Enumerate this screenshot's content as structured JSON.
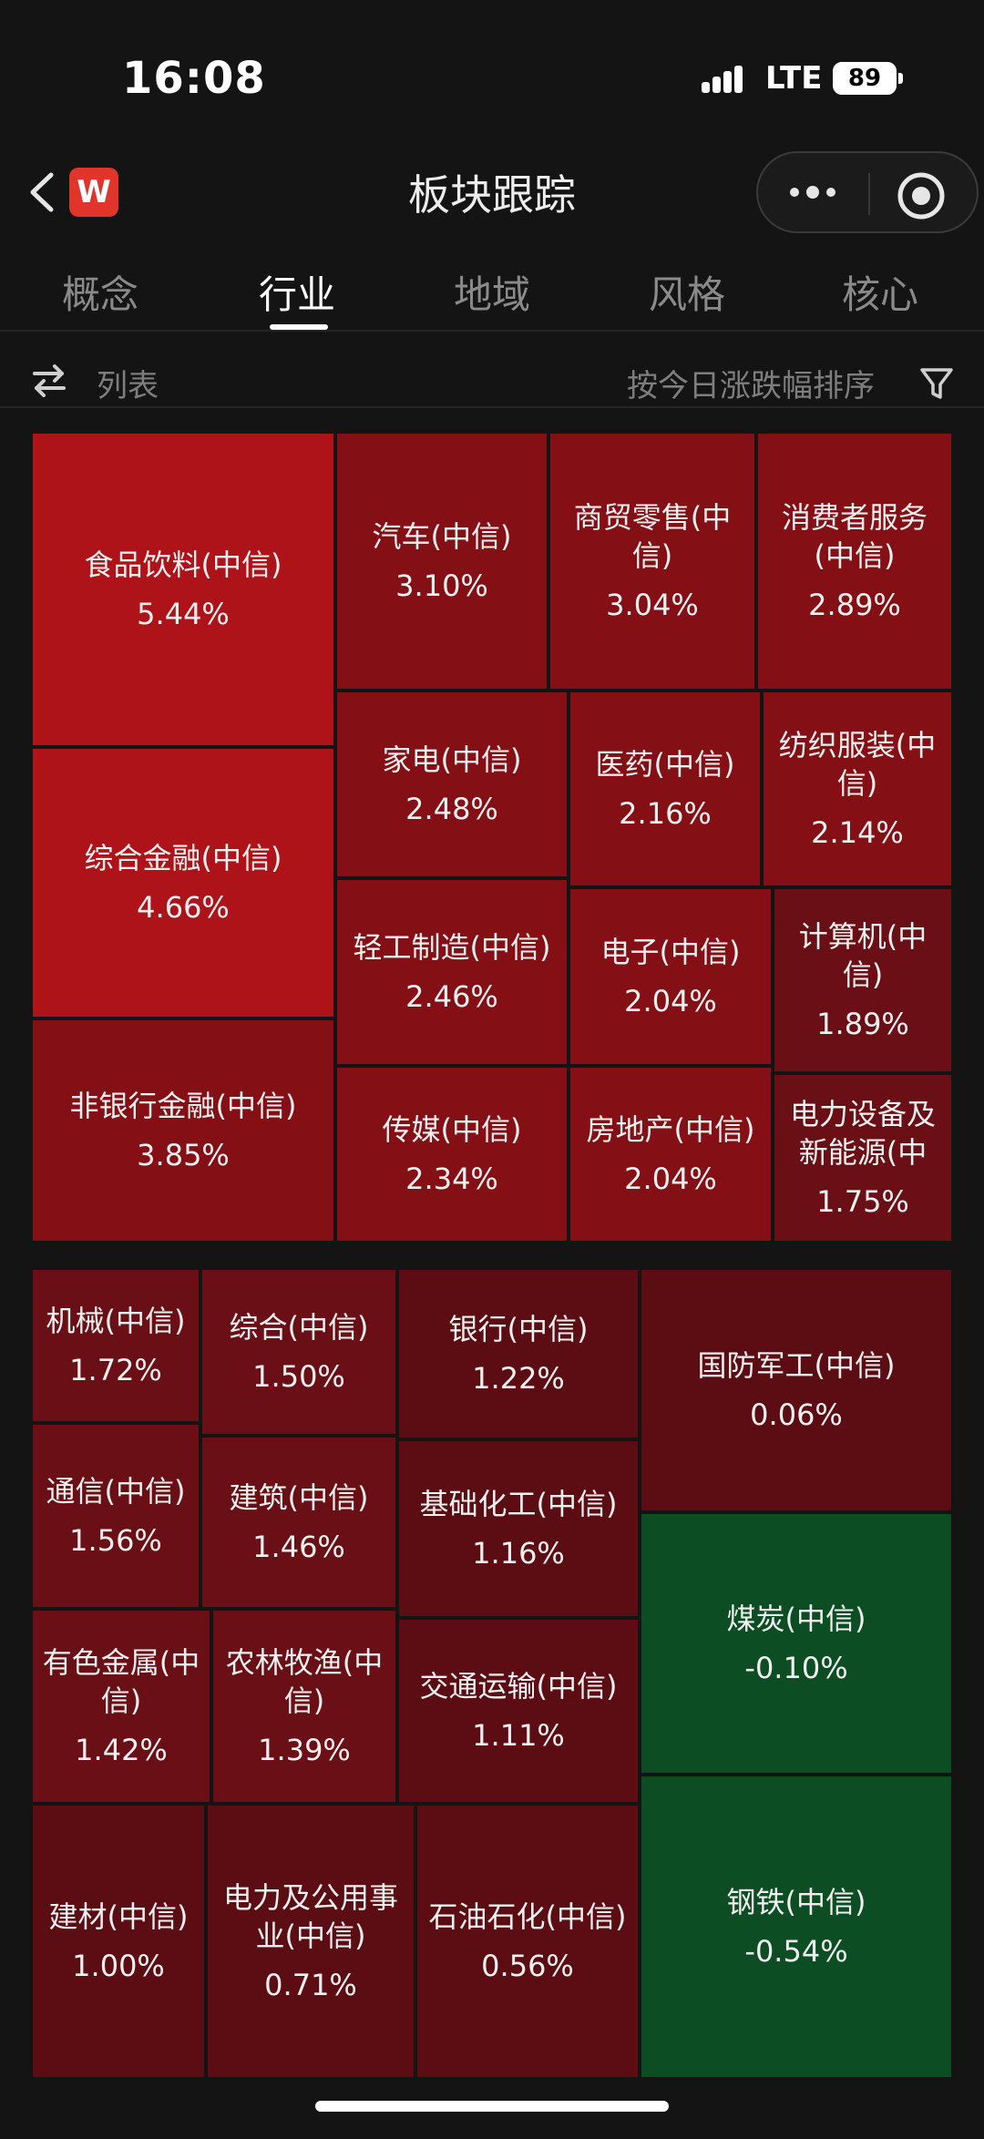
{
  "status_bar": {
    "time": "16:08",
    "network": "LTE",
    "battery": "89"
  },
  "header": {
    "app_logo": "W",
    "title": "板块跟踪",
    "more_icon": "more-dots-icon",
    "close_icon": "target-circle-icon"
  },
  "tabs": [
    {
      "label": "概念"
    },
    {
      "label": "行业"
    },
    {
      "label": "地域"
    },
    {
      "label": "风格"
    },
    {
      "label": "核心"
    }
  ],
  "active_tab": "行业",
  "filter_bar": {
    "view_label": "列表",
    "sort_label": "按今日涨跌幅排序"
  },
  "colors": {
    "bright_red": "#ad1318",
    "red": "#841016",
    "dark_red": "#6a0f15",
    "darker_red": "#5c0d13",
    "green": "#0d4d23"
  },
  "tiles": [
    {
      "name": "食品饮料(中信)",
      "pct": "5.44%"
    },
    {
      "name": "汽车(中信)",
      "pct": "3.10%"
    },
    {
      "name": "商贸零售(中信)",
      "pct": "3.04%"
    },
    {
      "name": "消费者服务(中信)",
      "pct": "2.89%"
    },
    {
      "name": "综合金融(中信)",
      "pct": "4.66%"
    },
    {
      "name": "家电(中信)",
      "pct": "2.48%"
    },
    {
      "name": "医药(中信)",
      "pct": "2.16%"
    },
    {
      "name": "纺织服装(中信)",
      "pct": "2.14%"
    },
    {
      "name": "轻工制造(中信)",
      "pct": "2.46%"
    },
    {
      "name": "电子(中信)",
      "pct": "2.04%"
    },
    {
      "name": "计算机(中信)",
      "pct": "1.89%"
    },
    {
      "name": "非银行金融(中信)",
      "pct": "3.85%"
    },
    {
      "name": "传媒(中信)",
      "pct": "2.34%"
    },
    {
      "name": "房地产(中信)",
      "pct": "2.04%"
    },
    {
      "name": "电力设备及新能源(中",
      "pct": "1.75%"
    },
    {
      "name": "机械(中信)",
      "pct": "1.72%"
    },
    {
      "name": "综合(中信)",
      "pct": "1.50%"
    },
    {
      "name": "银行(中信)",
      "pct": "1.22%"
    },
    {
      "name": "国防军工(中信)",
      "pct": "0.06%"
    },
    {
      "name": "通信(中信)",
      "pct": "1.56%"
    },
    {
      "name": "建筑(中信)",
      "pct": "1.46%"
    },
    {
      "name": "基础化工(中信)",
      "pct": "1.16%"
    },
    {
      "name": "煤炭(中信)",
      "pct": "-0.10%"
    },
    {
      "name": "有色金属(中信)",
      "pct": "1.42%"
    },
    {
      "name": "农林牧渔(中信)",
      "pct": "1.39%"
    },
    {
      "name": "交通运输(中信)",
      "pct": "1.11%"
    },
    {
      "name": "建材(中信)",
      "pct": "1.00%"
    },
    {
      "name": "电力及公用事业(中信)",
      "pct": "0.71%"
    },
    {
      "name": "石油石化(中信)",
      "pct": "0.56%"
    },
    {
      "name": "钢铁(中信)",
      "pct": "-0.54%"
    }
  ]
}
